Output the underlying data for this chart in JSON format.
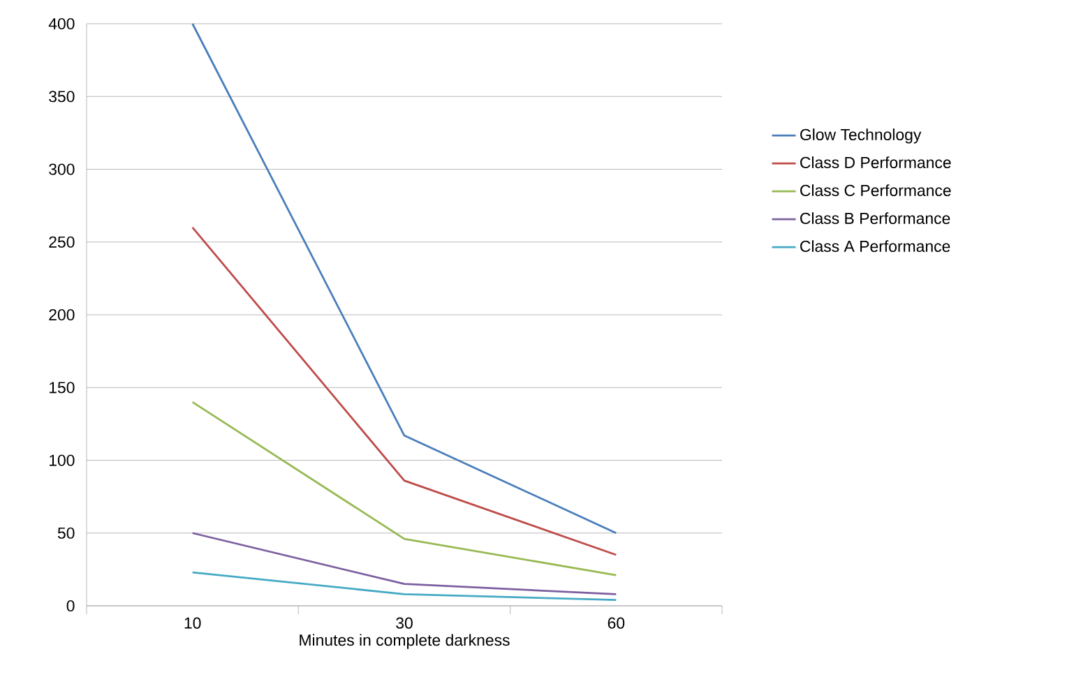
{
  "chart_data": {
    "type": "line",
    "xlabel": "Minutes in complete darkness",
    "categories": [
      "10",
      "30",
      "60"
    ],
    "series": [
      {
        "name": "Glow Technology",
        "color": "#4a7ebb",
        "values": [
          400,
          117,
          50
        ]
      },
      {
        "name": "Class D Performance",
        "color": "#be4b48",
        "values": [
          260,
          86,
          35
        ]
      },
      {
        "name": "Class C Performance",
        "color": "#98b954",
        "values": [
          140,
          46,
          21
        ]
      },
      {
        "name": "Class B Performance",
        "color": "#7d60a0",
        "values": [
          50,
          15,
          8
        ]
      },
      {
        "name": "Class A Performance",
        "color": "#46aac5",
        "values": [
          23,
          8,
          4
        ]
      }
    ],
    "ylim": [
      0,
      400
    ],
    "yticks": [
      0,
      50,
      100,
      150,
      200,
      250,
      300,
      350,
      400
    ],
    "grid": "y",
    "legend": "right",
    "marker": "none",
    "line_style": "solid"
  }
}
